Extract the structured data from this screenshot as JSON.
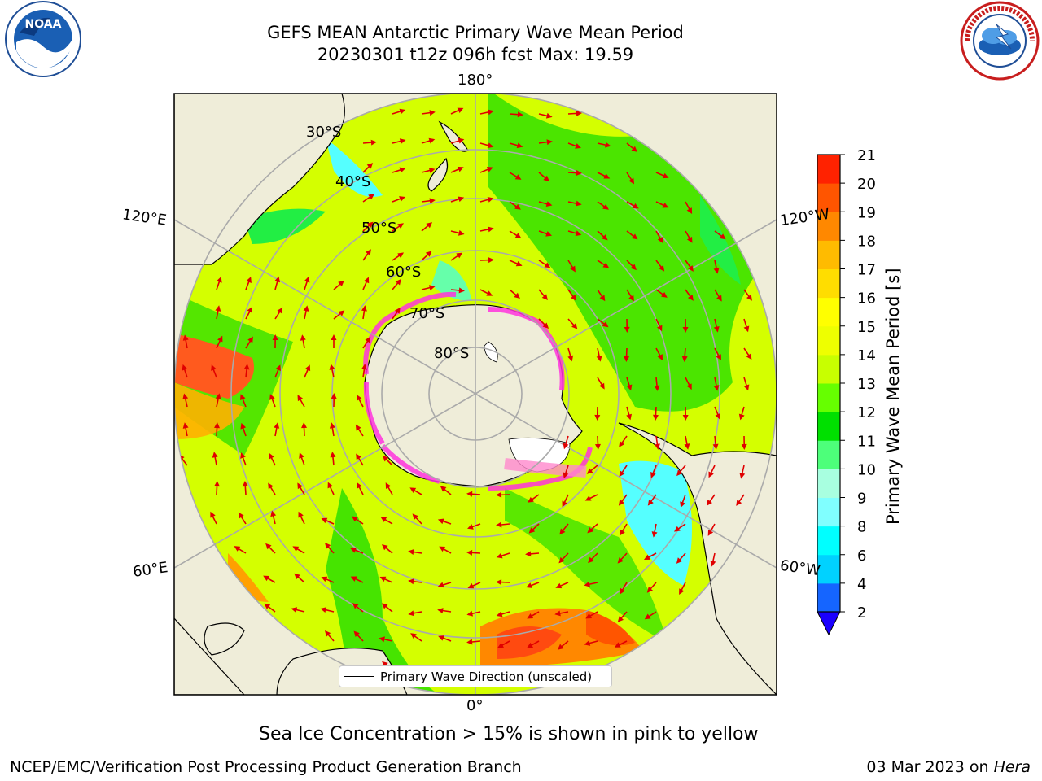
{
  "title": {
    "line1": "GEFS MEAN Antarctic Primary Wave Mean Period",
    "line2": "20230301 t12z 096h fcst   Max: 19.59"
  },
  "map": {
    "projection": "south-polar-stereographic",
    "longitude_labels": [
      "180°",
      "120°E",
      "120°W",
      "60°E",
      "60°W",
      "0°"
    ],
    "latitude_labels": [
      "30°S",
      "40°S",
      "50°S",
      "60°S",
      "70°S",
      "80°S"
    ],
    "arrow_color": "#e00000",
    "land_color": "#efedd9",
    "legend_label": "Primary Wave Direction (unscaled)"
  },
  "colorbar": {
    "label": "Primary Wave Mean Period [s]",
    "ticks": [
      "2",
      "4",
      "6",
      "8",
      "9",
      "10",
      "11",
      "12",
      "13",
      "14",
      "15",
      "16",
      "17",
      "18",
      "19",
      "20",
      "21"
    ],
    "colors": [
      "#1565ff",
      "#00d2ff",
      "#00ffff",
      "#80ffff",
      "#a8ffe0",
      "#4dff7a",
      "#00e000",
      "#66ff00",
      "#c8ff00",
      "#eeff00",
      "#ffff00",
      "#ffdd00",
      "#ffbb00",
      "#ff8800",
      "#ff5500",
      "#ff2200"
    ],
    "extend_color": "#1a00ff"
  },
  "caption": "Sea Ice Concentration > 15% is shown in pink to yellow",
  "footer": {
    "left": "NCEP/EMC/Verification Post Processing Product Generation Branch",
    "right_date": "03 Mar 2023 on ",
    "right_host": "Hera"
  },
  "logos": {
    "noaa": "NOAA",
    "nws_text": "NATIONAL WEATHER SERVICE"
  }
}
